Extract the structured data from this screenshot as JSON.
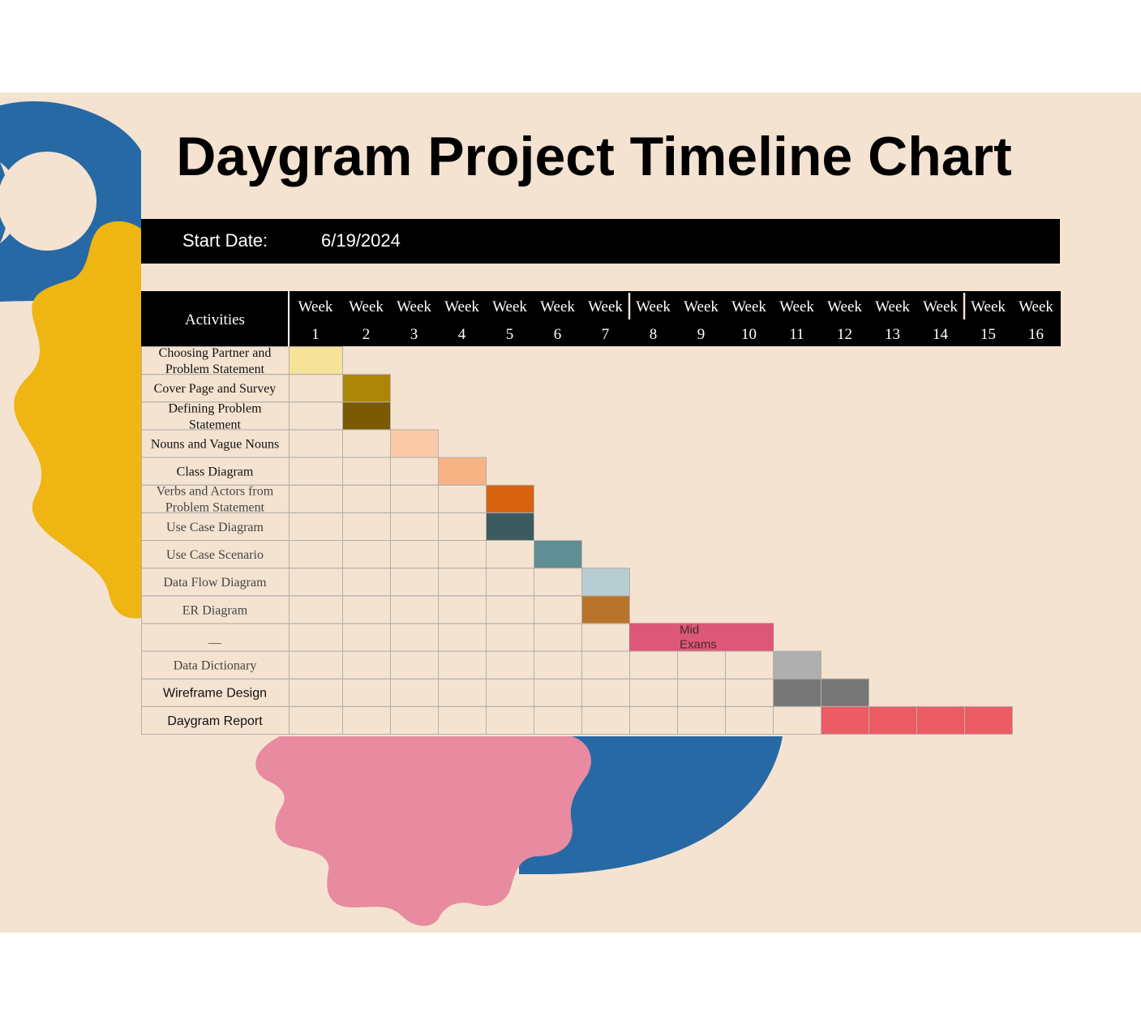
{
  "title": "Daygram Project Timeline Chart",
  "start": {
    "label": "Start Date:",
    "value": "6/19/2024"
  },
  "colors": {
    "background": "#f4e3d1",
    "header": "#000000",
    "grid": "#b4b0aa",
    "blue": "#2769a5",
    "yellow": "#eeb513",
    "pink": "#e88aa0"
  },
  "chart_data": {
    "type": "gantt",
    "column_header": "Activities",
    "weeks": [
      {
        "top": "Week",
        "bottom": "1"
      },
      {
        "top": "Week",
        "bottom": "2"
      },
      {
        "top": "Week",
        "bottom": "3"
      },
      {
        "top": "Week",
        "bottom": "4"
      },
      {
        "top": "Week",
        "bottom": "5"
      },
      {
        "top": "Week",
        "bottom": "6"
      },
      {
        "top": "Week",
        "bottom": "7"
      },
      {
        "top": "Week",
        "bottom": "8"
      },
      {
        "top": "Week",
        "bottom": "9"
      },
      {
        "top": "Week",
        "bottom": "10"
      },
      {
        "top": "Week",
        "bottom": "11"
      },
      {
        "top": "Week",
        "bottom": "12"
      },
      {
        "top": "Week",
        "bottom": "13"
      },
      {
        "top": "Week",
        "bottom": "14"
      },
      {
        "top": "Week",
        "bottom": "15"
      },
      {
        "top": "Week",
        "bottom": "16"
      }
    ],
    "tasks": [
      {
        "name": [
          "Choosing Partner and",
          "Problem Statement"
        ],
        "start": 1,
        "end": 1,
        "color": "#f7e29a"
      },
      {
        "name": [
          "Cover Page and Survey"
        ],
        "start": 2,
        "end": 2,
        "color": "#ae8607"
      },
      {
        "name": [
          "Defining Problem",
          "Statement"
        ],
        "start": 2,
        "end": 2,
        "color": "#7a5a00"
      },
      {
        "name": [
          "Nouns and Vague Nouns"
        ],
        "start": 3,
        "end": 3,
        "color": "#fccaa9"
      },
      {
        "name": [
          "Class Diagram"
        ],
        "start": 4,
        "end": 4,
        "color": "#f7b384"
      },
      {
        "name": [
          "Verbs and Actors from",
          "Problem Statement"
        ],
        "start": 5,
        "end": 5,
        "color": "#d9620f"
      },
      {
        "name": [
          "Use Case Diagram"
        ],
        "start": 5,
        "end": 5,
        "color": "#3c5b5e"
      },
      {
        "name": [
          "Use Case Scenario"
        ],
        "start": 6,
        "end": 6,
        "color": "#5f8e94"
      },
      {
        "name": [
          "Data Flow Diagram"
        ],
        "start": 7,
        "end": 7,
        "color": "#b8cdd2"
      },
      {
        "name": [
          "ER Diagram"
        ],
        "start": 7,
        "end": 7,
        "color": "#b8742a"
      },
      {
        "name": [
          "—"
        ],
        "start": 8,
        "end": 10,
        "color": "#dd5878",
        "annotation": [
          "Mid",
          "Exams"
        ]
      },
      {
        "name": [
          "Data Dictionary"
        ],
        "start": 11,
        "end": 11,
        "color": "#b0afaf"
      },
      {
        "name": [
          "Wireframe Design"
        ],
        "start": 11,
        "end": 12,
        "color": "#767676"
      },
      {
        "name": [
          "Daygram Report"
        ],
        "start": 12,
        "end": 15,
        "color": "#eb5c64"
      }
    ]
  }
}
